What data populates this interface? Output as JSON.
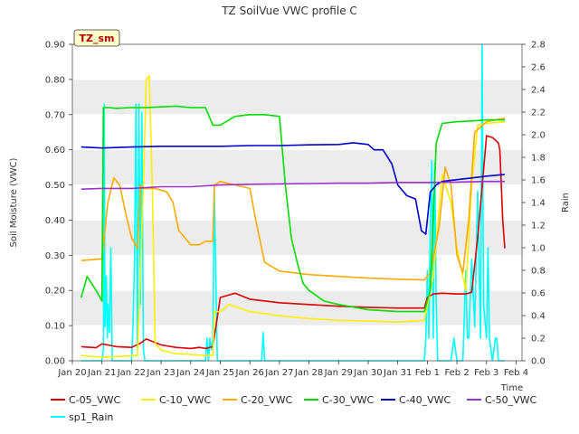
{
  "chart_data": {
    "type": "line",
    "title": "TZ SoilVue VWC profile C",
    "badge": "TZ_sm",
    "ylabel": "Soil Moisture (VWC)",
    "y2label": "Rain",
    "xlabel": "Time",
    "ylim": [
      0.0,
      0.9
    ],
    "y2lim": [
      0.0,
      2.8
    ],
    "xlim": [
      0,
      15.2
    ],
    "yticks": [
      "0.00",
      "0.10",
      "0.20",
      "0.30",
      "0.40",
      "0.50",
      "0.60",
      "0.70",
      "0.80",
      "0.90"
    ],
    "y2ticks": [
      "0.0",
      "0.2",
      "0.4",
      "0.6",
      "0.8",
      "1.0",
      "1.2",
      "1.4",
      "1.6",
      "1.8",
      "2.0",
      "2.2",
      "2.4",
      "2.6",
      "2.8"
    ],
    "xticks": [
      "Jan 20",
      "Jan 21",
      "Jan 22",
      "Jan 23",
      "Jan 24",
      "Jan 25",
      "Jan 26",
      "Jan 27",
      "Jan 28",
      "Jan 29",
      "Jan 30",
      "Jan 31",
      "Feb 1",
      "Feb 2",
      "Feb 3",
      "Feb 4"
    ],
    "colors": {
      "band": "#ececec",
      "grid": "#ffffff",
      "badge_fill": "#ffffcc",
      "badge_border": "#333333"
    },
    "series": [
      {
        "name": "C-05_VWC",
        "color": "#dd0000",
        "axis": "left",
        "x": [
          0.3,
          0.8,
          1.0,
          1.5,
          2.0,
          2.3,
          2.5,
          3.0,
          3.5,
          4.0,
          4.3,
          4.5,
          4.75,
          5.0,
          5.5,
          6.0,
          7.0,
          8.0,
          9.0,
          10.0,
          11.0,
          11.9,
          12.0,
          12.2,
          12.5,
          13.0,
          13.3,
          13.5,
          13.7,
          14.0,
          14.2,
          14.4,
          14.45,
          14.55,
          14.62
        ],
        "y": [
          0.04,
          0.037,
          0.048,
          0.04,
          0.038,
          0.05,
          0.062,
          0.045,
          0.038,
          0.035,
          0.038,
          0.035,
          0.04,
          0.18,
          0.192,
          0.175,
          0.165,
          0.16,
          0.155,
          0.152,
          0.15,
          0.15,
          0.18,
          0.19,
          0.192,
          0.19,
          0.19,
          0.195,
          0.35,
          0.64,
          0.635,
          0.62,
          0.6,
          0.4,
          0.32
        ]
      },
      {
        "name": "C-10_VWC",
        "color": "#ffee00",
        "axis": "left",
        "x": [
          0.3,
          1.0,
          1.5,
          2.2,
          2.4,
          2.5,
          2.6,
          2.7,
          2.8,
          3.0,
          3.5,
          4.0,
          4.5,
          4.75,
          4.8,
          5.0,
          5.3,
          6.0,
          7.0,
          8.0,
          9.0,
          10.0,
          11.0,
          11.9,
          12.2,
          12.5,
          12.8,
          13.0,
          13.3,
          13.5,
          13.7,
          14.0,
          14.62
        ],
        "y": [
          0.015,
          0.01,
          0.012,
          0.015,
          0.5,
          0.8,
          0.81,
          0.5,
          0.05,
          0.03,
          0.02,
          0.018,
          0.015,
          0.015,
          0.14,
          0.14,
          0.16,
          0.14,
          0.128,
          0.12,
          0.115,
          0.113,
          0.11,
          0.115,
          0.24,
          0.53,
          0.45,
          0.32,
          0.2,
          0.5,
          0.67,
          0.675,
          0.68
        ]
      },
      {
        "name": "C-20_VWC",
        "color": "#ffaa00",
        "axis": "left",
        "x": [
          0.3,
          1.0,
          1.2,
          1.4,
          1.6,
          1.8,
          2.0,
          2.2,
          2.3,
          2.4,
          2.8,
          3.2,
          3.4,
          3.6,
          4.0,
          4.3,
          4.5,
          4.75,
          4.8,
          5.0,
          6.0,
          6.2,
          6.5,
          7.0,
          8.0,
          9.0,
          10.0,
          11.0,
          11.9,
          12.1,
          12.4,
          12.6,
          12.8,
          13.0,
          13.2,
          13.4,
          13.6,
          14.0,
          14.62
        ],
        "y": [
          0.285,
          0.29,
          0.45,
          0.52,
          0.5,
          0.42,
          0.35,
          0.32,
          0.5,
          0.49,
          0.49,
          0.48,
          0.45,
          0.37,
          0.33,
          0.33,
          0.34,
          0.34,
          0.5,
          0.51,
          0.49,
          0.4,
          0.28,
          0.255,
          0.245,
          0.24,
          0.235,
          0.232,
          0.23,
          0.25,
          0.38,
          0.55,
          0.5,
          0.3,
          0.25,
          0.4,
          0.65,
          0.68,
          0.69
        ]
      },
      {
        "name": "C-30_VWC",
        "color": "#00dd00",
        "axis": "left",
        "x": [
          0.3,
          0.5,
          0.8,
          1.0,
          1.05,
          1.2,
          1.5,
          2.0,
          2.5,
          3.0,
          3.5,
          4.0,
          4.4,
          4.5,
          4.75,
          5.0,
          5.5,
          6.0,
          6.5,
          7.0,
          7.2,
          7.4,
          7.6,
          7.8,
          8.0,
          8.5,
          9.0,
          10.0,
          11.0,
          11.9,
          12.1,
          12.3,
          12.5,
          13.0,
          13.5,
          14.0,
          14.62
        ],
        "y": [
          0.18,
          0.24,
          0.2,
          0.17,
          0.72,
          0.72,
          0.718,
          0.72,
          0.72,
          0.722,
          0.724,
          0.72,
          0.72,
          0.72,
          0.67,
          0.67,
          0.695,
          0.7,
          0.7,
          0.695,
          0.5,
          0.35,
          0.28,
          0.22,
          0.2,
          0.17,
          0.16,
          0.145,
          0.14,
          0.14,
          0.2,
          0.62,
          0.675,
          0.68,
          0.682,
          0.685,
          0.685
        ]
      },
      {
        "name": "C-40_VWC",
        "color": "#0000cc",
        "axis": "left",
        "x": [
          0.3,
          1.0,
          2.0,
          3.0,
          4.0,
          5.0,
          6.0,
          7.0,
          8.0,
          9.0,
          9.5,
          10.0,
          10.2,
          10.5,
          10.8,
          11.0,
          11.3,
          11.6,
          11.8,
          11.95,
          12.1,
          12.3,
          12.5,
          13.0,
          13.5,
          14.0,
          14.62
        ],
        "y": [
          0.608,
          0.605,
          0.608,
          0.61,
          0.61,
          0.61,
          0.612,
          0.612,
          0.614,
          0.615,
          0.62,
          0.615,
          0.6,
          0.6,
          0.56,
          0.5,
          0.47,
          0.46,
          0.37,
          0.36,
          0.48,
          0.5,
          0.51,
          0.515,
          0.52,
          0.525,
          0.53
        ]
      },
      {
        "name": "C-50_VWC",
        "color": "#9933cc",
        "axis": "left",
        "x": [
          0.3,
          1.0,
          2.0,
          3.0,
          4.0,
          5.0,
          6.0,
          7.0,
          8.0,
          9.0,
          10.0,
          11.0,
          12.0,
          13.0,
          14.0,
          14.62
        ],
        "y": [
          0.488,
          0.49,
          0.49,
          0.495,
          0.495,
          0.5,
          0.502,
          0.503,
          0.504,
          0.505,
          0.505,
          0.507,
          0.507,
          0.508,
          0.51,
          0.51
        ]
      },
      {
        "name": "sp1_Rain",
        "color": "#00ffff",
        "axis": "right",
        "x": [
          0.3,
          1.0,
          1.05,
          1.08,
          1.1,
          1.15,
          1.18,
          1.2,
          1.25,
          1.3,
          1.35,
          1.4,
          1.5,
          2.0,
          2.05,
          2.1,
          2.15,
          2.2,
          2.25,
          2.3,
          2.35,
          2.4,
          2.45,
          2.5,
          2.6,
          2.8,
          4.0,
          4.5,
          4.55,
          4.6,
          4.65,
          4.7,
          4.75,
          4.8,
          4.9,
          5.0,
          5.05,
          5.1,
          5.2,
          6.0,
          6.4,
          6.45,
          6.5,
          7.0,
          11.9,
          11.95,
          12.0,
          12.05,
          12.1,
          12.15,
          12.2,
          12.25,
          12.3,
          12.35,
          12.4,
          12.5,
          12.6,
          12.8,
          12.9,
          13.0,
          13.1,
          13.2,
          13.3,
          13.35,
          13.4,
          13.5,
          13.6,
          13.7,
          13.8,
          13.85,
          13.9,
          14.0,
          14.05,
          14.1,
          14.2,
          14.3,
          14.35,
          14.4,
          14.5,
          14.62
        ],
        "y": [
          0.0,
          0.0,
          0.1,
          2.27,
          0.3,
          0.75,
          0.2,
          0.5,
          0.25,
          1.0,
          0.0,
          0.0,
          0.0,
          0.0,
          0.3,
          0.9,
          2.27,
          0.1,
          2.27,
          0.5,
          2.2,
          0.1,
          0.0,
          0.0,
          0.0,
          0.0,
          0.0,
          0.0,
          0.2,
          0.0,
          0.2,
          0.1,
          0.2,
          1.5,
          0.0,
          0.0,
          0.0,
          0.0,
          0.0,
          0.0,
          0.0,
          0.25,
          0.0,
          0.0,
          0.0,
          0.2,
          0.8,
          0.2,
          1.2,
          1.77,
          0.2,
          1.75,
          0.5,
          0.0,
          0.0,
          0.0,
          0.0,
          0.0,
          0.2,
          0.0,
          0.0,
          0.0,
          0.8,
          0.2,
          0.2,
          0.9,
          0.3,
          1.5,
          0.2,
          2.8,
          0.5,
          0.2,
          1.0,
          0.2,
          0.0,
          0.2,
          0.2,
          0.0,
          0.0,
          0.0
        ]
      }
    ]
  }
}
